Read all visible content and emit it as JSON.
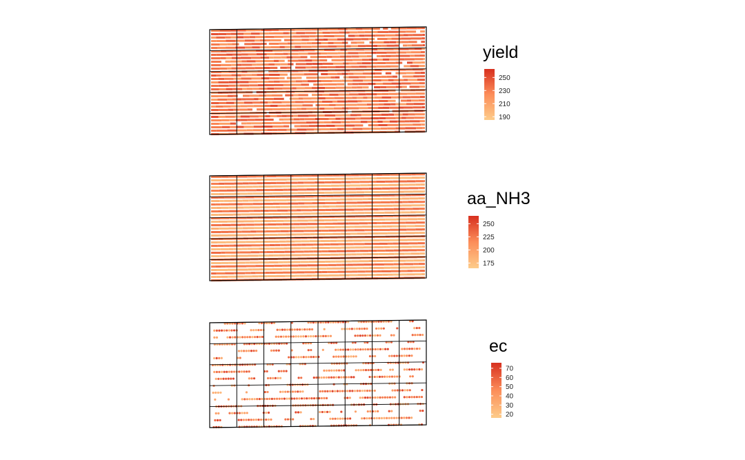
{
  "chart_data": [
    {
      "type": "heatmap",
      "variable": "yield",
      "legend": {
        "title": "yield",
        "min": 185,
        "max": 263,
        "ticks": [
          190,
          210,
          230,
          250
        ],
        "colors": [
          "#fdcc8a",
          "#fc8d59",
          "#d7301f"
        ]
      },
      "grid": {
        "columns": 8,
        "rows": 5
      },
      "mark": "strips",
      "value_range": [
        185,
        263
      ]
    },
    {
      "type": "heatmap",
      "variable": "aa_NH3",
      "legend": {
        "title": "aa_NH3",
        "min": 165,
        "max": 265,
        "ticks": [
          175,
          200,
          225,
          250
        ],
        "colors": [
          "#fdcc8a",
          "#fc8d59",
          "#d7301f"
        ]
      },
      "grid": {
        "columns": 8,
        "rows": 5
      },
      "mark": "strips",
      "value_range": [
        165,
        265
      ]
    },
    {
      "type": "scatter",
      "variable": "ec",
      "legend": {
        "title": "ec",
        "min": 16,
        "max": 76,
        "ticks": [
          20,
          30,
          40,
          50,
          60,
          70
        ],
        "colors": [
          "#fdcc8a",
          "#fc8d59",
          "#d7301f"
        ]
      },
      "grid": {
        "columns": 8,
        "rows": 5
      },
      "mark": "points",
      "value_range": [
        16,
        76
      ]
    }
  ]
}
